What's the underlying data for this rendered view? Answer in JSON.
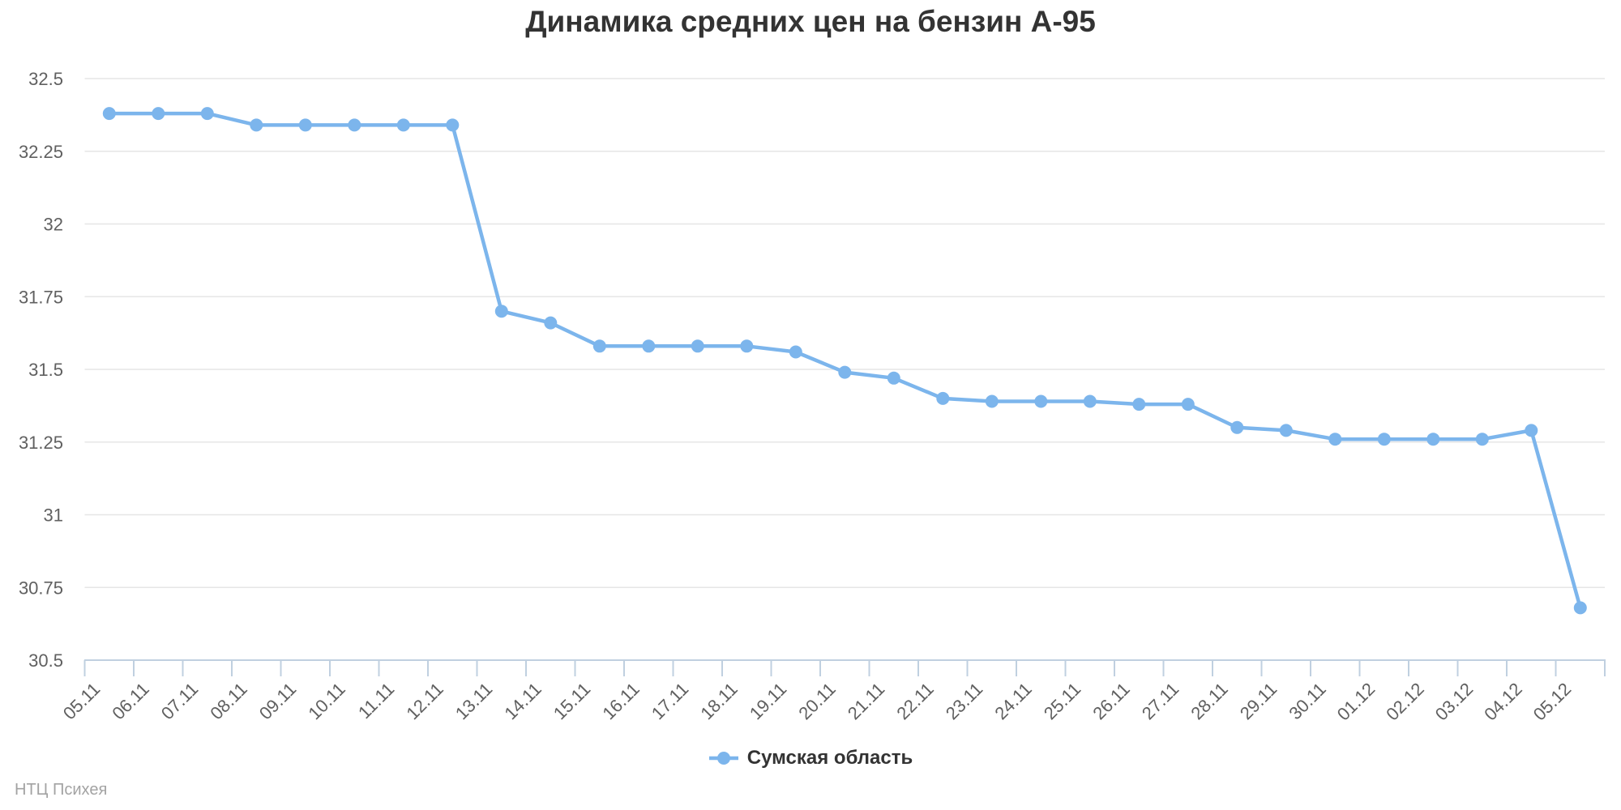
{
  "title": "Динамика средних цен на бензин А-95",
  "watermark": "НТЦ Психея",
  "legend": {
    "label": "Сумская область"
  },
  "colors": {
    "line": "#7cb5ec",
    "marker": "#7cb5ec",
    "grid": "#e6e6e6",
    "axis": "#c0d0e0",
    "tick": "#c0d0e0",
    "axis_label": "#606060",
    "title": "#333333",
    "legend_text": "#333333",
    "watermark": "#a3a3a3",
    "background": "#ffffff"
  },
  "chart_data": {
    "type": "line",
    "title": "Динамика средних цен на бензин А-95",
    "xlabel": "",
    "ylabel": "",
    "ylim": [
      30.5,
      32.5
    ],
    "ytick_step": 0.25,
    "ytick_labels": [
      "30.5",
      "30.75",
      "31",
      "31.25",
      "31.5",
      "31.75",
      "32",
      "32.25",
      "32.5"
    ],
    "grid": true,
    "legend_position": "bottom-center",
    "x_label_rotation": -45,
    "categories": [
      "05.11",
      "06.11",
      "07.11",
      "08.11",
      "09.11",
      "10.11",
      "11.11",
      "12.11",
      "13.11",
      "14.11",
      "15.11",
      "16.11",
      "17.11",
      "18.11",
      "19.11",
      "20.11",
      "21.11",
      "22.11",
      "23.11",
      "24.11",
      "25.11",
      "26.11",
      "27.11",
      "28.11",
      "29.11",
      "30.11",
      "01.12",
      "02.12",
      "03.12",
      "04.12",
      "05.12"
    ],
    "series": [
      {
        "name": "Сумская область",
        "color": "#7cb5ec",
        "values": [
          32.38,
          32.38,
          32.38,
          32.34,
          32.34,
          32.34,
          32.34,
          32.34,
          31.7,
          31.66,
          31.58,
          31.58,
          31.58,
          31.58,
          31.56,
          31.49,
          31.47,
          31.4,
          31.39,
          31.39,
          31.39,
          31.38,
          31.38,
          31.3,
          31.29,
          31.26,
          31.26,
          31.26,
          31.26,
          31.29,
          30.68
        ]
      }
    ]
  }
}
